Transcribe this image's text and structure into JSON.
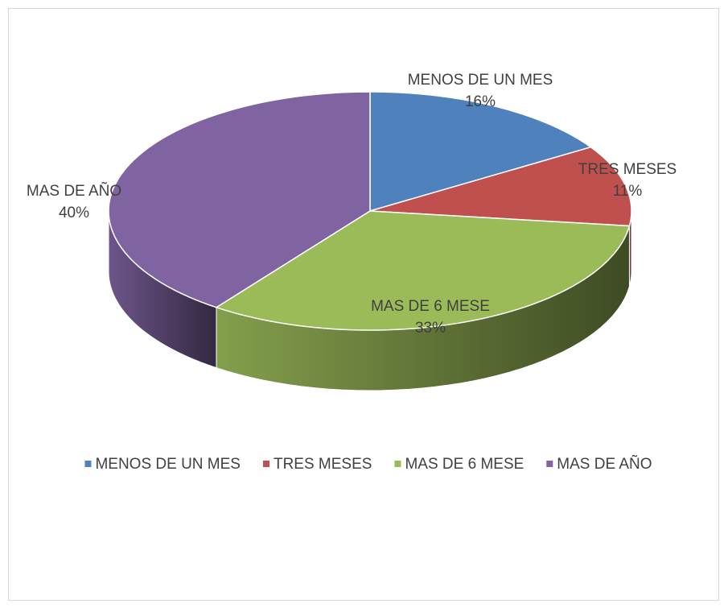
{
  "chart_data": {
    "type": "pie3d",
    "categories": [
      "MENOS DE UN MES",
      "TRES MESES",
      "MAS DE 6 MESE",
      "MAS DE AÑO"
    ],
    "values": [
      16,
      11,
      33,
      40
    ],
    "value_labels": [
      "16%",
      "11%",
      "33%",
      "40%"
    ],
    "colors": [
      "#4f81bd",
      "#c0504d",
      "#9bbb59",
      "#8064a2"
    ],
    "legend": "bottom"
  }
}
